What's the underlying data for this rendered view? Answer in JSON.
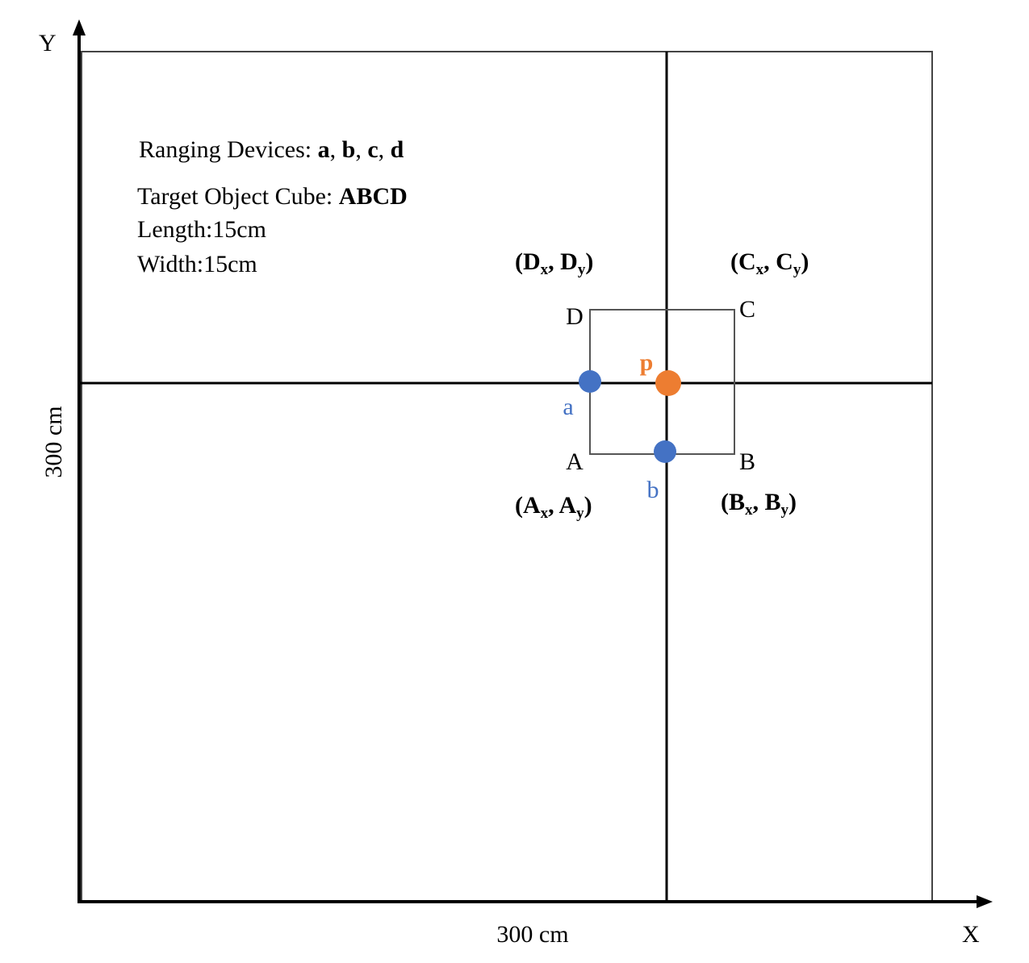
{
  "axes": {
    "y_label": "Y",
    "x_label": "X",
    "x_length": "300 cm",
    "y_length": "300 cm"
  },
  "legend": {
    "devices": [
      {
        "text": "Ranging Devices: "
      },
      {
        "text": "a",
        "bold": true
      },
      {
        "text": ", "
      },
      {
        "text": "b",
        "bold": true
      },
      {
        "text": ", "
      },
      {
        "text": "c",
        "bold": true
      },
      {
        "text": ", "
      },
      {
        "text": "d",
        "bold": true
      }
    ],
    "target": [
      {
        "text": "Target Object Cube: "
      },
      {
        "text": "ABCD",
        "bold": true
      }
    ],
    "length": "Length:15cm",
    "width": "Width:15cm"
  },
  "corners": [
    {
      "label": "A",
      "coord": [
        {
          "text": "(A",
          "bold": true
        },
        {
          "text": "x",
          "bold": true,
          "sub": true
        },
        {
          "text": ", A",
          "bold": true
        },
        {
          "text": "y",
          "bold": true,
          "sub": true
        },
        {
          "text": ")",
          "bold": true
        }
      ]
    },
    {
      "label": "B",
      "coord": [
        {
          "text": "(B",
          "bold": true
        },
        {
          "text": "x",
          "bold": true,
          "sub": true
        },
        {
          "text": ", B",
          "bold": true
        },
        {
          "text": "y",
          "bold": true,
          "sub": true
        },
        {
          "text": ")",
          "bold": true
        }
      ]
    },
    {
      "label": "C",
      "coord": [
        {
          "text": "(C",
          "bold": true
        },
        {
          "text": "x",
          "bold": true,
          "sub": true
        },
        {
          "text": ", C",
          "bold": true
        },
        {
          "text": "y",
          "bold": true,
          "sub": true
        },
        {
          "text": ")",
          "bold": true
        }
      ]
    },
    {
      "label": "D",
      "coord": [
        {
          "text": "(D",
          "bold": true
        },
        {
          "text": "x",
          "bold": true,
          "sub": true
        },
        {
          "text": ", D",
          "bold": true
        },
        {
          "text": "y",
          "bold": true,
          "sub": true
        },
        {
          "text": ")",
          "bold": true
        }
      ]
    }
  ],
  "devices": [
    {
      "label": "a"
    },
    {
      "label": "b"
    }
  ],
  "center": {
    "label": "p"
  }
}
